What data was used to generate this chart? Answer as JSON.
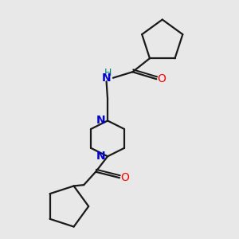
{
  "bg_color": "#e8e8e8",
  "bond_color": "#1a1a1a",
  "N_color": "#0000cd",
  "O_color": "#ff0000",
  "H_color": "#008080",
  "line_width": 1.6,
  "font_size_atom": 10,
  "xlim": [
    0,
    10
  ],
  "ylim": [
    0,
    10
  ]
}
